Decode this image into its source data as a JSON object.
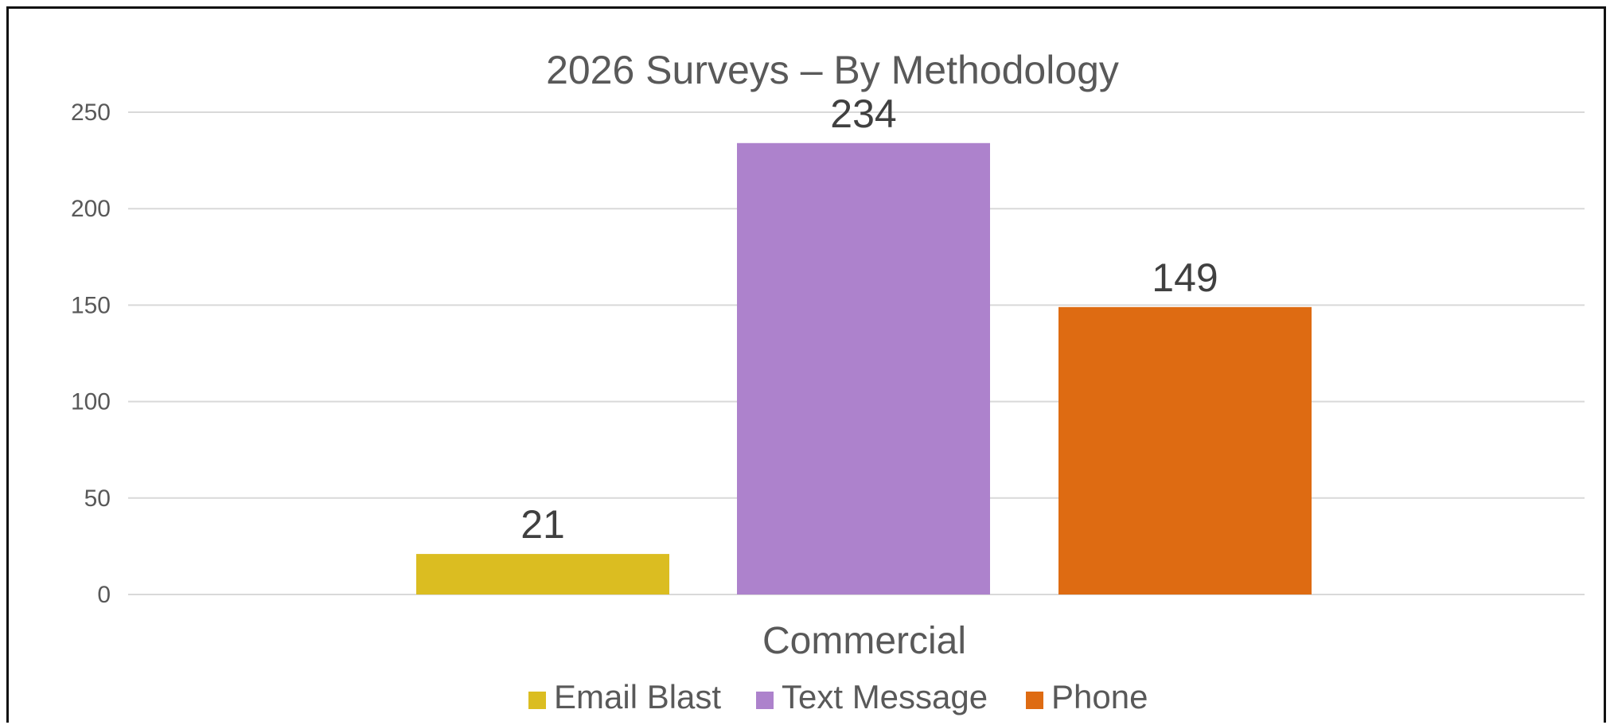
{
  "chart_data": {
    "type": "bar",
    "title": "2026 Surveys – By Methodology",
    "xlabel": "",
    "ylabel": "",
    "categories": [
      "Commercial"
    ],
    "ylim": [
      0,
      250
    ],
    "yticks": [
      0,
      50,
      100,
      150,
      200,
      250
    ],
    "grid": true,
    "legend_position": "bottom",
    "series": [
      {
        "name": "Email Blast",
        "values": [
          21
        ],
        "color": "#DBBD21"
      },
      {
        "name": "Text Message",
        "values": [
          234
        ],
        "color": "#AD82CC"
      },
      {
        "name": "Phone",
        "values": [
          149
        ],
        "color": "#DE6B12"
      }
    ]
  }
}
